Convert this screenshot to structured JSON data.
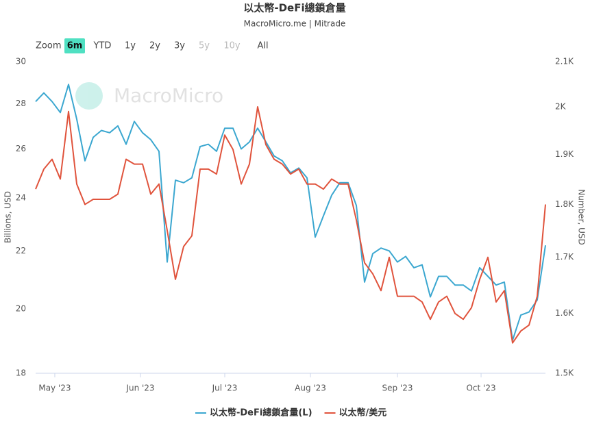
{
  "chart_data": {
    "type": "line",
    "title": "以太幣-DeFi總鎖倉量",
    "subtitle": "MacroMicro.me | Mitrade",
    "watermark": "MacroMicro",
    "range_selector": {
      "label": "Zoom",
      "buttons": [
        "6m",
        "YTD",
        "1y",
        "2y",
        "3y",
        "5y",
        "10y",
        "All"
      ],
      "selected": "6m",
      "disabled": [
        "5y",
        "10y"
      ]
    },
    "ylabel": "Billions, USD",
    "y2label": "Number, USD",
    "log_scale": true,
    "grid": false,
    "xlim": [
      0,
      62
    ],
    "xticks": [
      {
        "value": 2.33,
        "label": "May '23"
      },
      {
        "value": 12.75,
        "label": "Jun '23"
      },
      {
        "value": 23.0,
        "label": "Jul '23"
      },
      {
        "value": 33.42,
        "label": "Aug '23"
      },
      {
        "value": 44.0,
        "label": "Sep '23"
      },
      {
        "value": 54.17,
        "label": "Oct '23"
      }
    ],
    "ylim": [
      18,
      30
    ],
    "yticks": [
      18,
      20,
      22,
      24,
      26,
      28,
      30
    ],
    "y2lim": [
      1500,
      2100
    ],
    "y2ticks": [
      {
        "value": 1500,
        "label": "1.5K"
      },
      {
        "value": 1600,
        "label": "1.6K"
      },
      {
        "value": 1700,
        "label": "1.7K"
      },
      {
        "value": 1800,
        "label": "1.8K"
      },
      {
        "value": 1900,
        "label": "1.9K"
      },
      {
        "value": 2000,
        "label": "2K"
      },
      {
        "value": 2100,
        "label": "2.1K"
      }
    ],
    "legend": "bottom",
    "series": [
      {
        "name": "以太幣-DeFi總鎖倉量(L)",
        "color": "#3ba7d0",
        "axis": "y",
        "values": [
          28.1,
          28.5,
          28.1,
          27.6,
          28.9,
          27.3,
          25.5,
          26.5,
          26.8,
          26.7,
          27.0,
          26.2,
          27.2,
          26.7,
          26.4,
          25.9,
          21.6,
          24.7,
          24.6,
          24.8,
          26.1,
          26.2,
          25.9,
          26.9,
          26.9,
          26.0,
          26.3,
          26.9,
          26.3,
          25.7,
          25.5,
          25.0,
          25.2,
          24.8,
          22.5,
          23.3,
          24.1,
          24.6,
          24.6,
          23.7,
          20.9,
          21.9,
          22.1,
          22.0,
          21.6,
          21.8,
          21.4,
          21.5,
          20.4,
          21.1,
          21.1,
          20.8,
          20.8,
          20.6,
          21.4,
          21.1,
          20.8,
          20.9,
          19.0,
          19.8,
          19.9,
          20.3,
          22.2
        ]
      },
      {
        "name": "以太幣/美元",
        "color": "#e0533c",
        "axis": "y2",
        "values": [
          1830,
          1870,
          1890,
          1850,
          1990,
          1840,
          1800,
          1810,
          1810,
          1810,
          1820,
          1890,
          1880,
          1880,
          1820,
          1840,
          1750,
          1660,
          1720,
          1740,
          1870,
          1870,
          1860,
          1940,
          1910,
          1840,
          1880,
          2000,
          1920,
          1890,
          1880,
          1860,
          1870,
          1840,
          1840,
          1830,
          1850,
          1840,
          1840,
          1770,
          1690,
          1670,
          1640,
          1700,
          1630,
          1630,
          1630,
          1620,
          1590,
          1620,
          1630,
          1600,
          1590,
          1610,
          1660,
          1700,
          1620,
          1640,
          1550,
          1570,
          1580,
          1630,
          1800
        ]
      }
    ]
  }
}
